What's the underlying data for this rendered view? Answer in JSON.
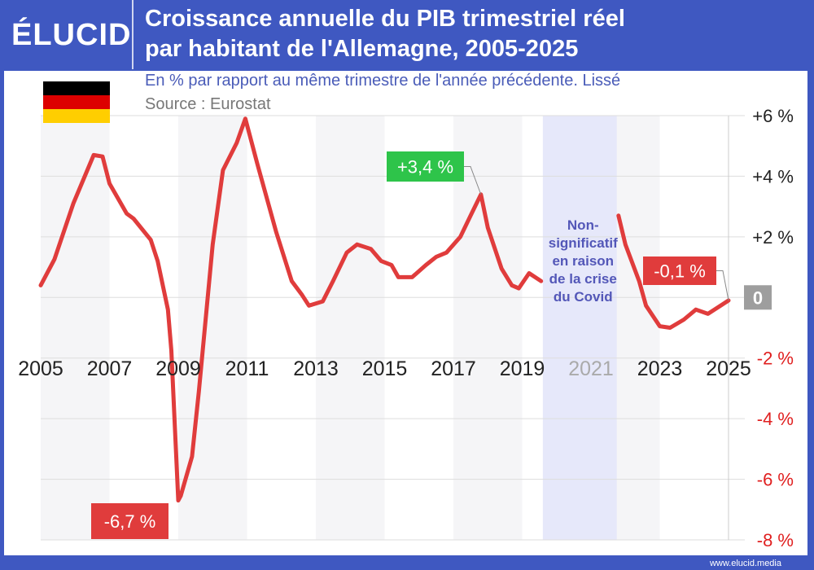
{
  "header": {
    "logo": "ÉLUCID",
    "title_line1": "Croissance annuelle du PIB trimestriel réel",
    "title_line2": "par habitant de l'Allemagne, 2005-2025",
    "subtitle": "En % par rapport au même trimestre de l'année précédente. Lissé",
    "source": "Source : Eurostat"
  },
  "flag": {
    "colors": [
      "#000000",
      "#dd0000",
      "#ffce00"
    ]
  },
  "footer": {
    "url": "www.elucid.media"
  },
  "chart_data": {
    "type": "line",
    "xlim": [
      2005,
      2025
    ],
    "ylim": [
      -8,
      6
    ],
    "x_ticks": [
      2005,
      2007,
      2009,
      2011,
      2013,
      2015,
      2017,
      2019,
      2021,
      2023,
      2025
    ],
    "x_tick_labels": [
      "2005",
      "2007",
      "2009",
      "2011",
      "2013",
      "2015",
      "2017",
      "2019",
      "2021",
      "2023",
      "2025"
    ],
    "y_ticks": [
      6,
      4,
      2,
      0,
      -2,
      -4,
      -6,
      -8
    ],
    "y_tick_labels": [
      "+6 %",
      "+4 %",
      "+2 %",
      "0",
      "-2 %",
      "-4 %",
      "-6 %",
      "-8 %"
    ],
    "grid": true,
    "line_color": "#e03c3c",
    "shaded_period": {
      "x": [
        2019.6,
        2021.75
      ],
      "color": "#e6e8fa",
      "label": "Non-\nsignificatif\nen raison\nde la crise\ndu Covid"
    },
    "series": [
      {
        "x": [
          2005.0,
          2005.4,
          2005.95,
          2006.54,
          2006.8,
          2007.0,
          2007.5,
          2007.7,
          2008.2,
          2008.4,
          2008.7,
          2008.8,
          2009.0,
          2009.07,
          2009.4,
          2009.6,
          2010.0,
          2010.3,
          2010.7,
          2010.95,
          2011.3,
          2011.85,
          2012.3,
          2012.6,
          2012.8,
          2013.2,
          2013.5,
          2013.9,
          2014.2,
          2014.6,
          2014.9,
          2015.2,
          2015.4,
          2015.8,
          2016.2,
          2016.5,
          2016.8,
          2017.2,
          2017.5,
          2017.8,
          2018.0,
          2018.4,
          2018.7,
          2018.9,
          2019.2,
          2019.55
        ],
        "y": [
          0.4,
          1.26,
          3.1,
          4.7,
          4.65,
          3.76,
          2.77,
          2.6,
          1.9,
          1.2,
          -0.4,
          -1.75,
          -6.7,
          -6.55,
          -5.25,
          -3.1,
          1.75,
          4.2,
          5.1,
          5.9,
          4.4,
          2.15,
          0.54,
          0.08,
          -0.27,
          -0.13,
          0.54,
          1.48,
          1.75,
          1.6,
          1.2,
          1.07,
          0.67,
          0.67,
          1.07,
          1.34,
          1.48,
          2.0,
          2.7,
          3.4,
          2.3,
          0.95,
          0.4,
          0.3,
          0.8,
          0.54
        ]
      },
      {
        "x": [
          2021.8,
          2022.0,
          2022.4,
          2022.6,
          2023.0,
          2023.3,
          2023.7,
          2024.05,
          2024.4,
          2025.0
        ],
        "y": [
          2.7,
          1.75,
          0.54,
          -0.27,
          -0.95,
          -1.0,
          -0.73,
          -0.4,
          -0.54,
          -0.1
        ]
      }
    ],
    "annotations": [
      {
        "text": "-6,7 %",
        "x": 2009.0,
        "y": -6.7,
        "color": "#e03c3c"
      },
      {
        "text": "+3,4 %",
        "x": 2017.8,
        "y": 3.4,
        "color": "#2ec44a"
      },
      {
        "text": "-0,1 %",
        "x": 2025.0,
        "y": -0.1,
        "color": "#e03c3c"
      }
    ]
  }
}
